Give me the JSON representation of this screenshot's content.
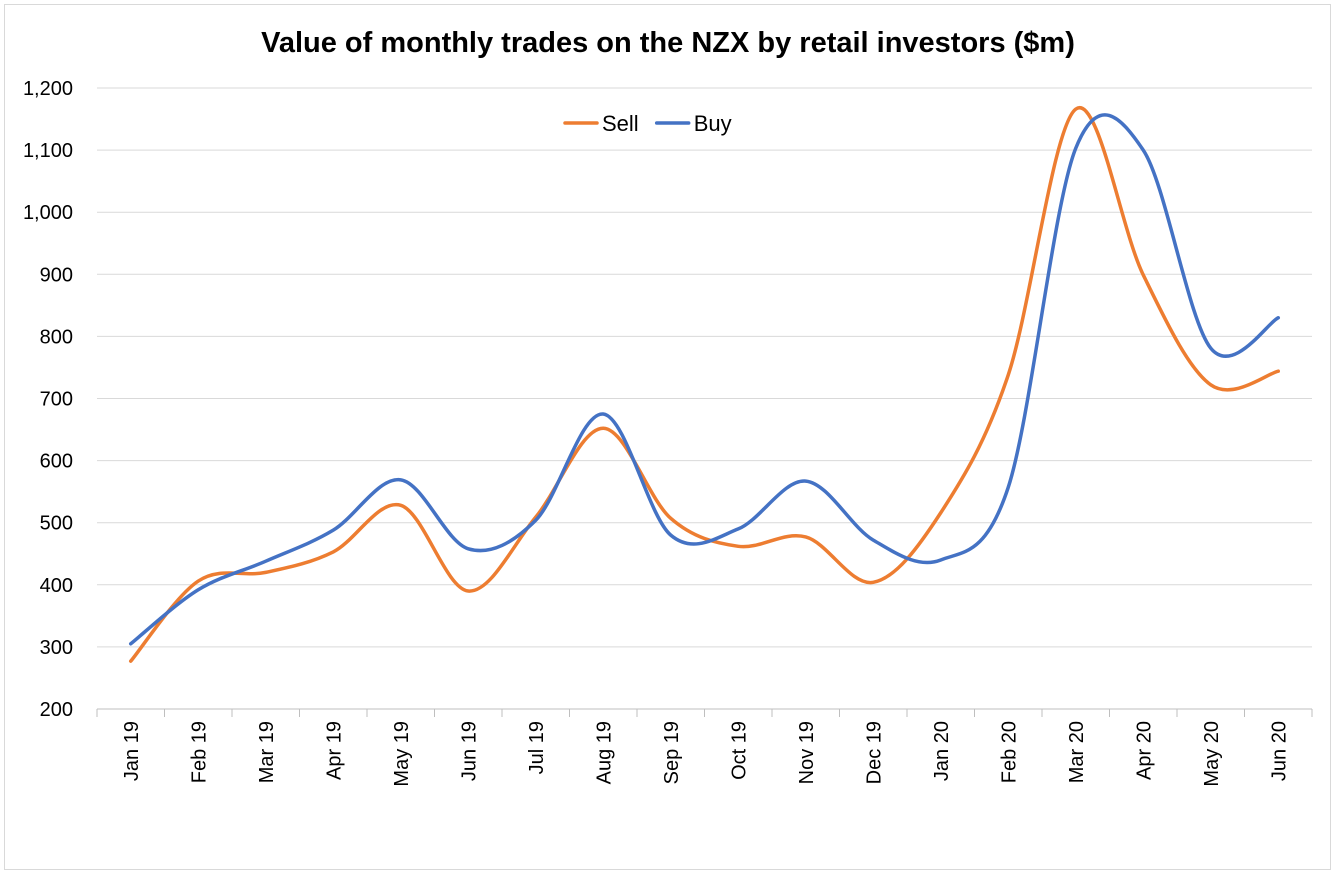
{
  "chart_data": {
    "type": "line",
    "title": "Value of monthly trades on the NZX by retail investors ($m)",
    "xlabel": "",
    "ylabel": "",
    "ylim": [
      200,
      1200
    ],
    "yticks": [
      "200",
      "300",
      "400",
      "500",
      "600",
      "700",
      "800",
      "900",
      "1,000",
      "1,100",
      "1,200"
    ],
    "ytick_values": [
      200,
      300,
      400,
      500,
      600,
      700,
      800,
      900,
      1000,
      1100,
      1200
    ],
    "grid": "horizontal",
    "smoothed": true,
    "legend_position": "top-center",
    "categories": [
      "Jan 19",
      "Feb 19",
      "Mar 19",
      "Apr 19",
      "May 19",
      "Jun 19",
      "Jul 19",
      "Aug 19",
      "Sep 19",
      "Oct 19",
      "Nov 19",
      "Dec 19",
      "Jan 20",
      "Feb 20",
      "Mar 20",
      "Apr 20",
      "May 20",
      "Jun 20"
    ],
    "series": [
      {
        "name": "Sell",
        "color": "#ED7D31",
        "values": [
          277,
          406,
          420,
          453,
          528,
          390,
          509,
          652,
          507,
          462,
          477,
          404,
          516,
          738,
          1166,
          899,
          722,
          744
        ]
      },
      {
        "name": "Buy",
        "color": "#4472C4",
        "values": [
          305,
          392,
          438,
          488,
          569,
          458,
          504,
          675,
          480,
          490,
          567,
          472,
          440,
          557,
          1103,
          1100,
          781,
          830
        ]
      }
    ]
  }
}
